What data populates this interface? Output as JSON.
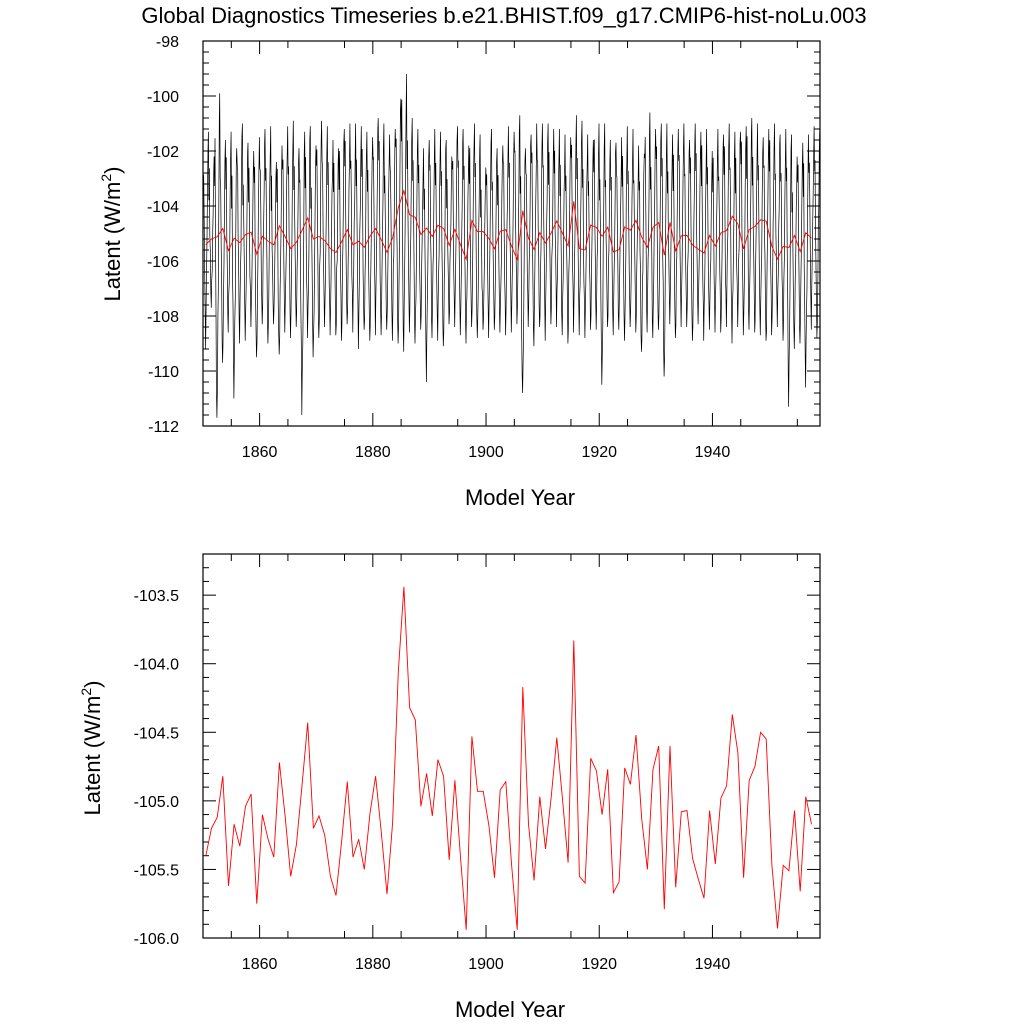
{
  "figure_title": "Global Diagnostics Timeseries b.e21.BHIST.f09_g17.CMIP6-hist-noLu.003",
  "chart_data": [
    {
      "type": "line",
      "xlabel": "Model Year",
      "ylabel": "Latent (W/m",
      "ylabel_superscript": "2",
      "ylabel_close": ")",
      "xlim": [
        1850,
        1959
      ],
      "ylim": [
        -112,
        -98
      ],
      "x_ticks": [
        1860,
        1880,
        1900,
        1920,
        1940
      ],
      "x_tick_labels": [
        "1860",
        "1880",
        "1900",
        "1920",
        "1940"
      ],
      "y_ticks": [
        -112,
        -110,
        -108,
        -106,
        -104,
        -102,
        -100,
        -98
      ],
      "y_tick_labels": [
        "-112",
        "-110",
        "-108",
        "-106",
        "-104",
        "-102",
        "-100",
        "-98"
      ],
      "grid": false,
      "series": [
        {
          "kind": "monthly",
          "color": "#000000",
          "peak_month_values": [
            -101.3,
            -102.2,
            -99.9,
            -101.6,
            -101.3,
            -101.9,
            -101.0,
            -101.7,
            -102.0,
            -101.5,
            -101.2,
            -101.1,
            -102.4,
            -101.8,
            -101.1,
            -100.9,
            -101.9,
            -101.3,
            -101.1,
            -101.8,
            -100.9,
            -101.1,
            -101.6,
            -101.9,
            -101.2,
            -101.0,
            -101.0,
            -101.1,
            -101.3,
            -101.5,
            -100.8,
            -101.0,
            -101.4,
            -101.2,
            -100.1,
            -99.2,
            -100.8,
            -101.2,
            -101.9,
            -101.6,
            -101.2,
            -101.3,
            -101.6,
            -102.2,
            -101.1,
            -101.2,
            -101.8,
            -101.0,
            -101.4,
            -102.6,
            -101.2,
            -101.9,
            -101.8,
            -101.1,
            -101.3,
            -100.7,
            -101.9,
            -101.4,
            -101.0,
            -101.0,
            -101.0,
            -101.2,
            -101.2,
            -101.4,
            -101.5,
            -100.7,
            -100.9,
            -101.4,
            -101.6,
            -101.0,
            -101.0,
            -101.6,
            -101.7,
            -101.5,
            -101.1,
            -101.2,
            -101.8,
            -102.1,
            -100.6,
            -101.2,
            -101.0,
            -101.0,
            -101.4,
            -101.2,
            -101.0,
            -101.6,
            -101.0,
            -101.3,
            -101.2,
            -102.0,
            -101.2,
            -101.4,
            -101.0,
            -101.3,
            -101.3,
            -101.1,
            -100.8,
            -101.0,
            -101.5,
            -101.2,
            -101.0,
            -101.4,
            -101.2,
            -101.4,
            -102.2,
            -101.7,
            -101.4,
            -101.1,
            -101.2,
            -102.4
          ],
          "trough_month_values": [
            -109.2,
            -107.7,
            -111.7,
            -109.7,
            -108.6,
            -111.0,
            -109.0,
            -108.9,
            -108.4,
            -109.5,
            -108.3,
            -109.0,
            -108.3,
            -109.4,
            -108.6,
            -108.8,
            -108.4,
            -111.6,
            -108.8,
            -109.5,
            -108.8,
            -108.4,
            -108.7,
            -108.7,
            -108.9,
            -108.3,
            -108.6,
            -109.2,
            -108.5,
            -108.9,
            -108.7,
            -108.7,
            -108.5,
            -108.9,
            -109.0,
            -109.3,
            -108.6,
            -109.0,
            -108.5,
            -110.4,
            -108.8,
            -108.9,
            -109.1,
            -108.3,
            -108.4,
            -108.7,
            -109.0,
            -108.4,
            -108.8,
            -108.5,
            -108.8,
            -108.5,
            -108.6,
            -108.7,
            -108.6,
            -108.3,
            -110.8,
            -108.4,
            -109.1,
            -108.4,
            -108.9,
            -108.3,
            -108.4,
            -108.7,
            -109.0,
            -108.6,
            -108.7,
            -108.8,
            -108.5,
            -108.5,
            -110.5,
            -108.4,
            -108.7,
            -108.5,
            -108.9,
            -108.4,
            -108.6,
            -109.3,
            -108.6,
            -108.8,
            -108.5,
            -110.2,
            -108.3,
            -108.8,
            -108.4,
            -108.4,
            -108.9,
            -108.3,
            -108.9,
            -108.5,
            -108.6,
            -108.6,
            -108.4,
            -109.0,
            -108.4,
            -108.7,
            -108.5,
            -108.6,
            -108.7,
            -108.9,
            -108.7,
            -108.4,
            -108.9,
            -111.3,
            -109.2,
            -109.0,
            -110.6,
            -108.5,
            -108.8,
            -108.4
          ]
        },
        {
          "kind": "annual_mean",
          "color": "#ff0000",
          "ref": "annual"
        }
      ]
    },
    {
      "type": "line",
      "xlabel": "Model Year",
      "ylabel": "Latent (W/m",
      "ylabel_superscript": "2",
      "ylabel_close": ")",
      "xlim": [
        1850,
        1959
      ],
      "ylim": [
        -106.0,
        -103.2
      ],
      "x_ticks": [
        1860,
        1880,
        1900,
        1920,
        1940
      ],
      "x_tick_labels": [
        "1860",
        "1880",
        "1900",
        "1920",
        "1940"
      ],
      "y_ticks": [
        -106.0,
        -105.5,
        -105.0,
        -104.5,
        -104.0,
        -103.5
      ],
      "y_tick_labels": [
        "-106.0",
        "-105.5",
        "-105.0",
        "-104.5",
        "-104.0",
        "-103.5"
      ],
      "grid": false,
      "series": [
        {
          "kind": "annual_mean",
          "color": "#ff0000",
          "start_year": 1850.5,
          "values": [
            -105.4,
            -105.2,
            -105.12,
            -104.82,
            -105.62,
            -105.17,
            -105.33,
            -105.04,
            -104.95,
            -105.75,
            -105.1,
            -105.28,
            -105.41,
            -104.72,
            -105.11,
            -105.55,
            -105.32,
            -104.88,
            -104.43,
            -105.2,
            -105.11,
            -105.25,
            -105.55,
            -105.69,
            -105.29,
            -104.86,
            -105.41,
            -105.28,
            -105.5,
            -105.09,
            -104.82,
            -105.23,
            -105.68,
            -105.16,
            -104.06,
            -103.44,
            -104.32,
            -104.41,
            -105.04,
            -104.8,
            -105.11,
            -104.7,
            -104.82,
            -105.43,
            -104.85,
            -105.42,
            -105.94,
            -104.53,
            -104.93,
            -104.93,
            -105.18,
            -105.56,
            -104.92,
            -104.86,
            -105.46,
            -105.94,
            -104.17,
            -105.17,
            -105.58,
            -104.97,
            -105.35,
            -104.98,
            -104.54,
            -104.98,
            -105.45,
            -103.83,
            -105.55,
            -105.6,
            -104.69,
            -104.78,
            -105.1,
            -104.77,
            -105.67,
            -105.59,
            -104.76,
            -104.88,
            -104.52,
            -105.13,
            -105.5,
            -104.77,
            -104.6,
            -105.79,
            -104.6,
            -105.63,
            -105.08,
            -105.07,
            -105.42,
            -105.57,
            -105.71,
            -105.07,
            -105.46,
            -104.98,
            -104.89,
            -104.37,
            -104.65,
            -105.56,
            -104.85,
            -104.75,
            -104.5,
            -104.55,
            -105.47,
            -105.93,
            -105.47,
            -105.51,
            -105.07,
            -105.66,
            -104.97,
            -105.17
          ]
        }
      ]
    }
  ]
}
